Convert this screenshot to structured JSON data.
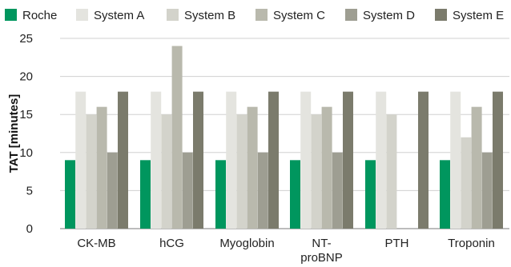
{
  "chart_data": {
    "type": "bar",
    "title": "",
    "xlabel": "",
    "ylabel": "TAT [minutes]",
    "ylim": [
      0,
      25
    ],
    "yticks": [
      0,
      5,
      10,
      15,
      20,
      25
    ],
    "grid": "horizontal",
    "legend_position": "top",
    "categories": [
      "CK-MB",
      "hCG",
      "Myoglobin",
      "NT-proBNP",
      "PTH",
      "Troponin"
    ],
    "series": [
      {
        "name": "Roche",
        "color": "#00965e",
        "values": [
          9,
          9,
          9,
          9,
          9,
          9
        ]
      },
      {
        "name": "System A",
        "color": "#e4e4df",
        "values": [
          18,
          18,
          18,
          18,
          18,
          18
        ]
      },
      {
        "name": "System B",
        "color": "#d3d3cb",
        "values": [
          15,
          15,
          15,
          15,
          15,
          12
        ]
      },
      {
        "name": "System C",
        "color": "#b9b9ad",
        "values": [
          16,
          24,
          16,
          16,
          null,
          16
        ]
      },
      {
        "name": "System D",
        "color": "#9e9e92",
        "values": [
          10,
          10,
          10,
          10,
          null,
          10
        ]
      },
      {
        "name": "System E",
        "color": "#7b7b6c",
        "values": [
          18,
          18,
          18,
          18,
          18,
          18
        ]
      }
    ]
  }
}
